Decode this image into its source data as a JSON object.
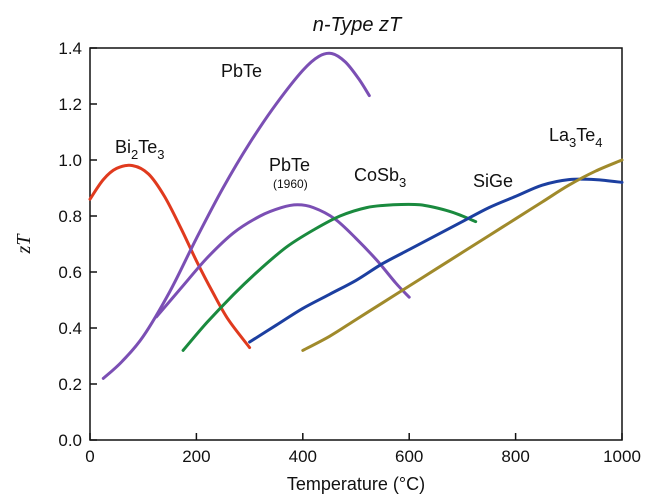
{
  "chart_data": {
    "type": "line",
    "title": "n-Type zT",
    "xlabel": "Temperature (°C)",
    "ylabel": "zT",
    "xlim": [
      0,
      1000
    ],
    "ylim": [
      0.0,
      1.4
    ],
    "xticks": [
      "0",
      "200",
      "400",
      "600",
      "800",
      "1000"
    ],
    "yticks": [
      "0.0",
      "0.2",
      "0.4",
      "0.6",
      "0.8",
      "1.0",
      "1.2",
      "1.4"
    ],
    "grid": false,
    "legend": "none",
    "series": [
      {
        "name": "Bi2Te3",
        "label_main": "Bi",
        "label_sub1": "2",
        "label_mid": "Te",
        "label_sub2": "3",
        "color": "#e03a1e",
        "x": [
          0,
          25,
          50,
          80,
          110,
          140,
          170,
          200,
          230,
          260,
          300
        ],
        "y": [
          0.86,
          0.93,
          0.97,
          0.98,
          0.95,
          0.87,
          0.76,
          0.64,
          0.53,
          0.43,
          0.33
        ]
      },
      {
        "name": "PbTe",
        "label_main": "PbTe",
        "color": "#7b4fb4",
        "x": [
          25,
          60,
          100,
          150,
          200,
          250,
          300,
          350,
          400,
          430,
          455,
          480,
          505,
          525
        ],
        "y": [
          0.22,
          0.28,
          0.37,
          0.53,
          0.72,
          0.9,
          1.06,
          1.2,
          1.32,
          1.37,
          1.38,
          1.35,
          1.29,
          1.23
        ]
      },
      {
        "name": "PbTe (1960)",
        "label_main": "PbTe",
        "label_note": "(1960)",
        "color": "#7b4fb4",
        "x": [
          125,
          170,
          220,
          270,
          320,
          360,
          390,
          420,
          460,
          500,
          540,
          575,
          600
        ],
        "y": [
          0.44,
          0.54,
          0.65,
          0.74,
          0.8,
          0.83,
          0.84,
          0.83,
          0.79,
          0.72,
          0.64,
          0.56,
          0.51
        ]
      },
      {
        "name": "CoSb3",
        "label_main": "CoSb",
        "label_sub1": "3",
        "color": "#1a8a3e",
        "x": [
          175,
          220,
          270,
          320,
          370,
          420,
          470,
          520,
          570,
          620,
          670,
          700,
          725
        ],
        "y": [
          0.32,
          0.42,
          0.52,
          0.61,
          0.69,
          0.75,
          0.8,
          0.83,
          0.84,
          0.84,
          0.82,
          0.8,
          0.78
        ]
      },
      {
        "name": "SiGe",
        "label_main": "SiGe",
        "color": "#1c3fa0",
        "x": [
          300,
          350,
          400,
          450,
          500,
          550,
          600,
          650,
          700,
          750,
          800,
          850,
          900,
          950,
          1000
        ],
        "y": [
          0.35,
          0.41,
          0.47,
          0.52,
          0.57,
          0.63,
          0.68,
          0.73,
          0.78,
          0.83,
          0.87,
          0.91,
          0.93,
          0.93,
          0.92
        ]
      },
      {
        "name": "La3Te4",
        "label_main": "La",
        "label_sub1": "3",
        "label_mid": "Te",
        "label_sub2": "4",
        "color": "#a08a2b",
        "x": [
          400,
          450,
          500,
          550,
          600,
          650,
          700,
          750,
          800,
          850,
          900,
          950,
          1000
        ],
        "y": [
          0.32,
          0.37,
          0.43,
          0.49,
          0.55,
          0.61,
          0.67,
          0.73,
          0.79,
          0.85,
          0.91,
          0.96,
          1.0
        ]
      }
    ]
  }
}
